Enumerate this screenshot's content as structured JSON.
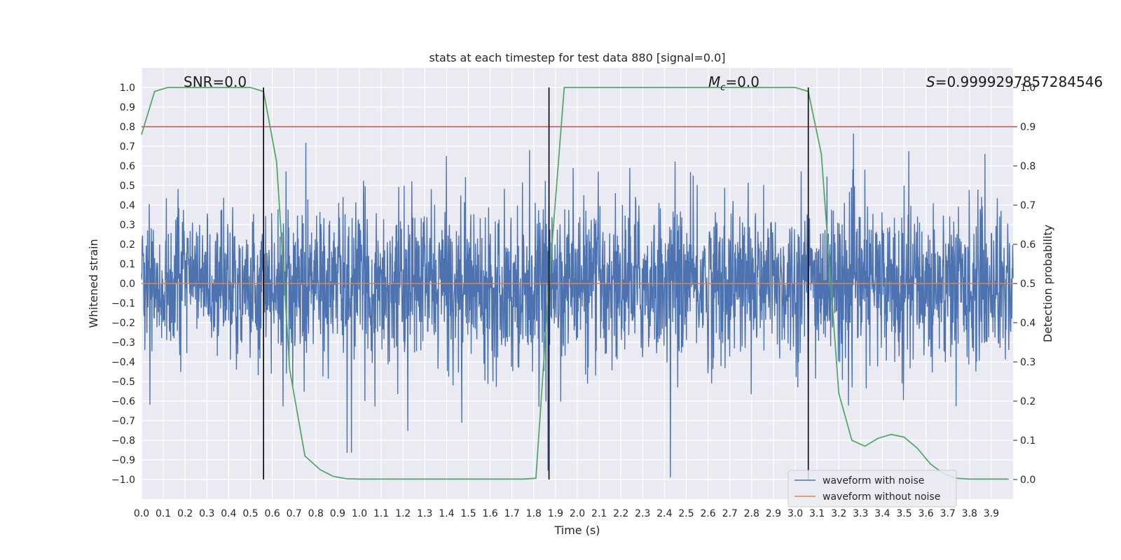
{
  "chart_data": {
    "type": "line",
    "title": "stats at each timestep for test data 880 [signal=0.0]",
    "xlabel": "Time (s)",
    "ylabel": "Whitened strain",
    "ylabel_right": "Detection probability",
    "xlim": [
      0.0,
      4.0
    ],
    "ylim": [
      -1.1,
      1.1
    ],
    "ylim_right": [
      -0.05,
      1.05
    ],
    "x_ticks": [
      "0.0",
      "0.1",
      "0.2",
      "0.3",
      "0.4",
      "0.5",
      "0.6",
      "0.7",
      "0.8",
      "0.9",
      "1.0",
      "1.1",
      "1.2",
      "1.3",
      "1.4",
      "1.5",
      "1.6",
      "1.7",
      "1.8",
      "1.9",
      "2.0",
      "2.1",
      "2.2",
      "2.3",
      "2.4",
      "2.5",
      "2.6",
      "2.7",
      "2.8",
      "2.9",
      "3.0",
      "3.1",
      "3.2",
      "3.3",
      "3.4",
      "3.5",
      "3.6",
      "3.7",
      "3.8",
      "3.9"
    ],
    "y_ticks": [
      "1.0",
      "0.9",
      "0.8",
      "0.7",
      "0.6",
      "0.5",
      "0.4",
      "0.3",
      "0.2",
      "0.1",
      "0.0",
      "−0.1",
      "−0.2",
      "−0.3",
      "−0.4",
      "−0.5",
      "−0.6",
      "−0.7",
      "−0.8",
      "−0.9",
      "−1.0"
    ],
    "y_ticks_right": [
      "1.0",
      "0.9",
      "0.8",
      "0.7",
      "0.6",
      "0.5",
      "0.4",
      "0.3",
      "0.2",
      "0.1",
      "0.0"
    ],
    "grid": true,
    "legend_position": "bottom-right",
    "series": [
      {
        "name": "waveform with noise",
        "color": "#4c72b0",
        "description": "dense noise trace, typical amplitude about ±0.35, peaks near ±0.85"
      },
      {
        "name": "waveform without noise",
        "color": "#dd8452",
        "values": "constant 0.0"
      }
    ],
    "detection_probability": {
      "color": "#55a868",
      "x": [
        0.0,
        0.06,
        0.12,
        0.2,
        0.3,
        0.4,
        0.5,
        0.56,
        0.62,
        0.68,
        0.75,
        0.82,
        0.88,
        0.94,
        1.0,
        1.2,
        1.4,
        1.6,
        1.75,
        1.81,
        1.87,
        1.94,
        2.0,
        2.2,
        2.5,
        2.8,
        3.0,
        3.06,
        3.12,
        3.2,
        3.26,
        3.32,
        3.38,
        3.44,
        3.5,
        3.56,
        3.62,
        3.68,
        3.74,
        3.8,
        3.9,
        3.98
      ],
      "y": [
        0.88,
        0.99,
        1.0,
        1.0,
        1.0,
        1.0,
        1.0,
        0.99,
        0.81,
        0.28,
        0.06,
        0.025,
        0.008,
        0.002,
        0.001,
        0.001,
        0.001,
        0.001,
        0.001,
        0.003,
        0.5,
        1.0,
        1.0,
        1.0,
        1.0,
        1.0,
        1.0,
        0.99,
        0.83,
        0.22,
        0.1,
        0.085,
        0.105,
        0.115,
        0.108,
        0.08,
        0.04,
        0.015,
        0.003,
        0.001,
        0.001,
        0.001
      ]
    },
    "threshold": {
      "value": 0.9,
      "color": "#c44e52"
    },
    "vertical_lines": [
      0.56,
      1.87,
      3.06
    ],
    "annotations": {
      "snr": "SNR=0.0",
      "mc_symbol": "M",
      "mc_sub": "c",
      "mc_value": "=0.0",
      "s_symbol": "S",
      "s_value": "=0.9999297857284546"
    }
  }
}
